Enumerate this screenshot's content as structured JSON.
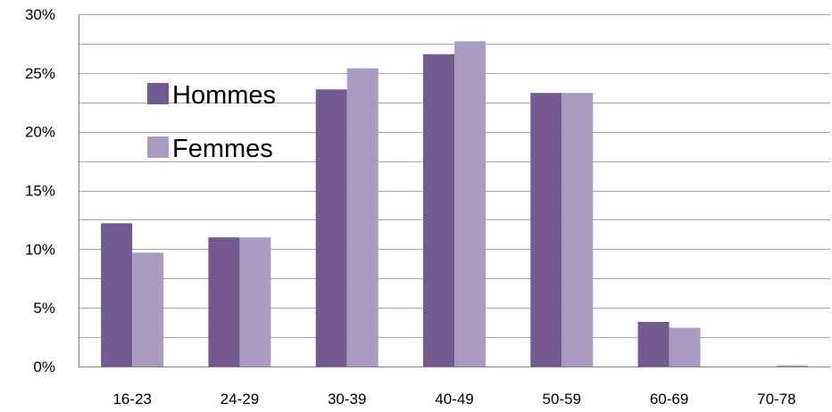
{
  "chart_data": {
    "type": "bar",
    "categories": [
      "16-23",
      "24-29",
      "30-39",
      "40-49",
      "50-59",
      "60-69",
      "70-78"
    ],
    "series": [
      {
        "name": "Hommes",
        "color": "#735a91",
        "values": [
          12.2,
          11.0,
          23.6,
          26.6,
          23.3,
          3.8,
          0.0
        ]
      },
      {
        "name": "Femmes",
        "color": "#a99bc2",
        "values": [
          9.7,
          11.0,
          25.4,
          27.7,
          23.3,
          3.3,
          0.1
        ]
      }
    ],
    "ylim": [
      0,
      30
    ],
    "yticks": [
      0,
      5,
      10,
      15,
      20,
      25,
      30
    ],
    "ytick_labels": [
      "0%",
      "5%",
      "10%",
      "15%",
      "20%",
      "25%",
      "30%"
    ],
    "grid": true,
    "legend_position": "upper-left inside plot",
    "title": "",
    "xlabel": "",
    "ylabel": ""
  }
}
